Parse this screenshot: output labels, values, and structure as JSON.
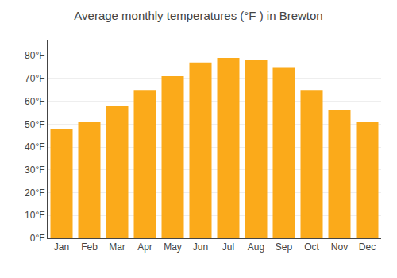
{
  "chart_data": {
    "type": "bar",
    "title": "Average monthly temperatures (°F ) in Brewton",
    "categories": [
      "Jan",
      "Feb",
      "Mar",
      "Apr",
      "May",
      "Jun",
      "Jul",
      "Aug",
      "Sep",
      "Oct",
      "Nov",
      "Dec"
    ],
    "values": [
      48,
      51,
      58,
      65,
      71,
      77,
      79,
      78,
      75,
      65,
      56,
      51
    ],
    "color": "#FBAA1A",
    "ylim": [
      0,
      87
    ],
    "yticks": [
      {
        "value": 0,
        "label": "0°F"
      },
      {
        "value": 10,
        "label": "10°F"
      },
      {
        "value": 20,
        "label": "20°F"
      },
      {
        "value": 30,
        "label": "30°F"
      },
      {
        "value": 40,
        "label": "40°F"
      },
      {
        "value": 50,
        "label": "50°F"
      },
      {
        "value": 60,
        "label": "60°F"
      },
      {
        "value": 70,
        "label": "70°F"
      },
      {
        "value": 80,
        "label": "80°F"
      }
    ],
    "grid": true
  }
}
